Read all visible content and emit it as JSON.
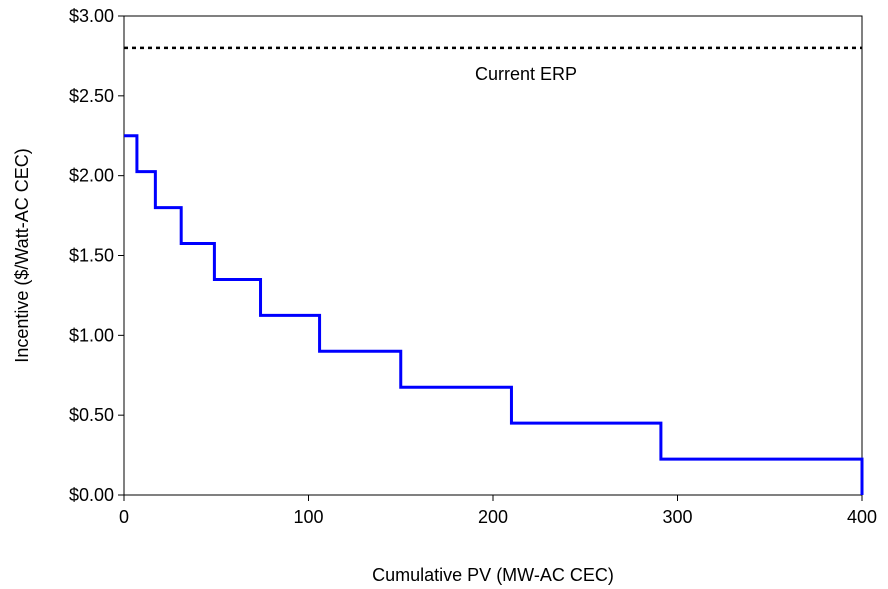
{
  "chart_data": {
    "type": "line",
    "title": "",
    "xlabel": "Cumulative PV (MW-AC CEC)",
    "ylabel": "Incentive ($/Watt-AC CEC)",
    "xlim": [
      0,
      400
    ],
    "ylim": [
      0,
      3.0
    ],
    "x_ticks": [
      0,
      100,
      200,
      300,
      400
    ],
    "x_tick_labels": [
      "0",
      "100",
      "200",
      "300",
      "400"
    ],
    "y_ticks": [
      0,
      0.5,
      1.0,
      1.5,
      2.0,
      2.5,
      3.0
    ],
    "y_tick_labels": [
      "$0.00",
      "$0.50",
      "$1.00",
      "$1.50",
      "$2.00",
      "$2.50",
      "$3.00"
    ],
    "grid": false,
    "legend": "none",
    "series": [
      {
        "style": "step",
        "color": "#0000ff",
        "steps": [
          {
            "x_start": 0,
            "x_end": 7,
            "y": 2.25
          },
          {
            "x_start": 7,
            "x_end": 17,
            "y": 2.025
          },
          {
            "x_start": 17,
            "x_end": 31,
            "y": 1.8
          },
          {
            "x_start": 31,
            "x_end": 49,
            "y": 1.575
          },
          {
            "x_start": 49,
            "x_end": 74,
            "y": 1.35
          },
          {
            "x_start": 74,
            "x_end": 106,
            "y": 1.125
          },
          {
            "x_start": 106,
            "x_end": 150,
            "y": 0.9
          },
          {
            "x_start": 150,
            "x_end": 210,
            "y": 0.675
          },
          {
            "x_start": 210,
            "x_end": 291,
            "y": 0.45
          },
          {
            "x_start": 291,
            "x_end": 400,
            "y": 0.225
          }
        ],
        "end_y": 0
      }
    ],
    "reference_line": {
      "y": 2.8,
      "style": "dotted",
      "color": "#000000",
      "label": "Current ERP"
    }
  }
}
